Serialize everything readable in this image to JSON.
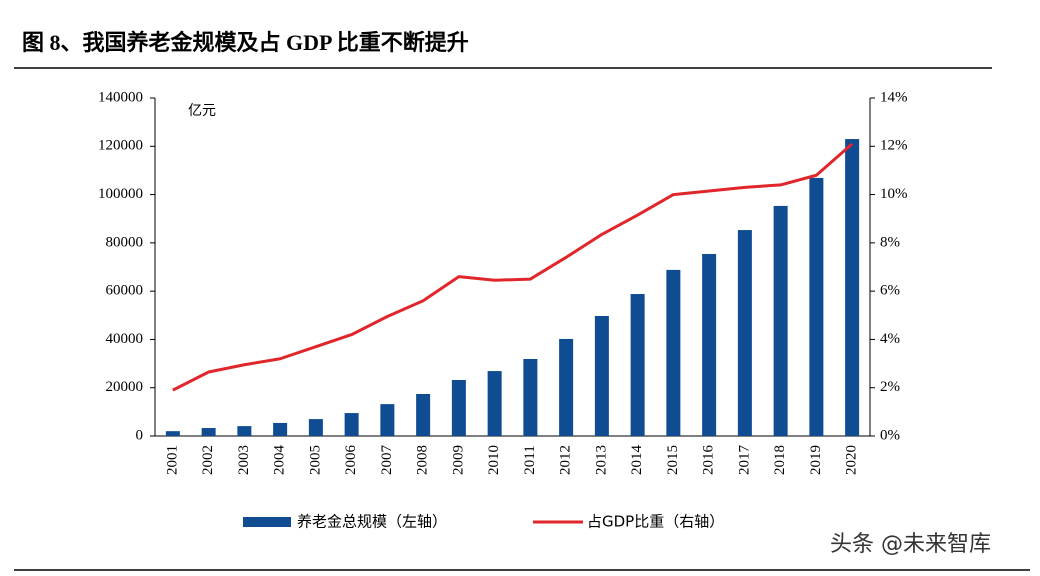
{
  "title": "图 8、我国养老金规模及占 GDP 比重不断提升",
  "chart_data": {
    "type": "bar",
    "unit_label": "亿元",
    "categories": [
      "2001",
      "2002",
      "2003",
      "2004",
      "2005",
      "2006",
      "2007",
      "2008",
      "2009",
      "2010",
      "2011",
      "2012",
      "2013",
      "2014",
      "2015",
      "2016",
      "2017",
      "2018",
      "2019",
      "2020"
    ],
    "series": [
      {
        "name": "养老金总规模（左轴）",
        "type": "bar",
        "color": "#0f4c92",
        "values": [
          2000,
          3300,
          4100,
          5400,
          7000,
          9500,
          13200,
          17400,
          23200,
          26900,
          31900,
          40200,
          49700,
          58800,
          68800,
          75400,
          85300,
          95300,
          106900,
          123000
        ]
      },
      {
        "name": "占GDP比重（右轴）",
        "type": "line",
        "axis": "y2",
        "color": "#e0262b",
        "values": [
          1.9,
          2.65,
          2.95,
          3.2,
          3.7,
          4.2,
          4.95,
          5.6,
          6.6,
          6.45,
          6.5,
          7.4,
          8.35,
          9.15,
          10.0,
          10.15,
          10.3,
          10.4,
          10.8,
          12.1
        ]
      }
    ],
    "ylim": [
      0,
      140000
    ],
    "yticks": [
      0,
      20000,
      40000,
      60000,
      80000,
      100000,
      120000,
      140000
    ],
    "y2lim": [
      0,
      14
    ],
    "y2ticks": [
      {
        "value": 0,
        "label": "0%"
      },
      {
        "value": 2,
        "label": "2%"
      },
      {
        "value": 4,
        "label": "4%"
      },
      {
        "value": 6,
        "label": "6%"
      },
      {
        "value": 8,
        "label": "8%"
      },
      {
        "value": 10,
        "label": "10%"
      },
      {
        "value": 12,
        "label": "12%"
      },
      {
        "value": 14,
        "label": "14%"
      }
    ],
    "legend": "bottom",
    "grid": false
  },
  "watermark": "头条 @未来智库"
}
